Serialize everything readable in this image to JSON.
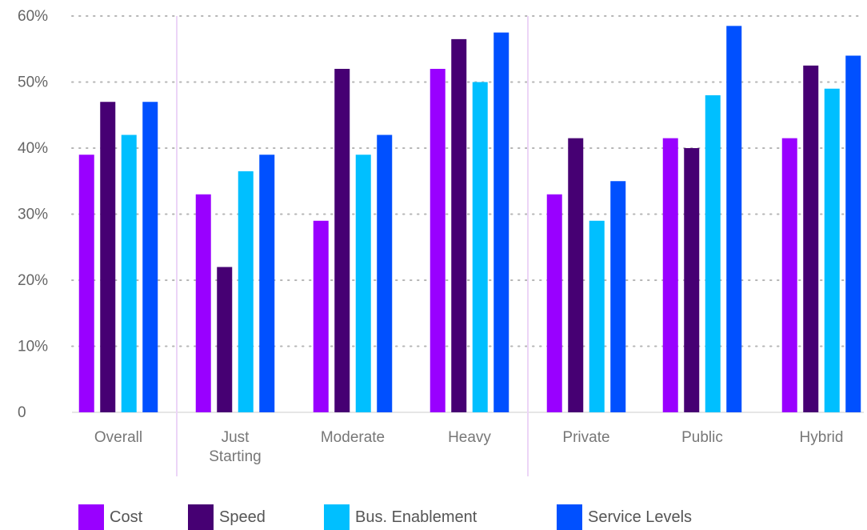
{
  "chart_data": {
    "type": "bar",
    "categories": [
      [
        "Overall"
      ],
      [
        "Just",
        "Starting"
      ],
      [
        "Moderate"
      ],
      [
        "Heavy"
      ],
      [
        "Private"
      ],
      [
        "Public"
      ],
      [
        "Hybrid"
      ]
    ],
    "series": [
      {
        "name": "Cost",
        "color": "#9900ff",
        "values": [
          39,
          33,
          29,
          52,
          33,
          41.5,
          41.5
        ]
      },
      {
        "name": "Speed",
        "color": "#460073",
        "values": [
          47,
          22,
          52,
          56.5,
          41.5,
          40,
          52.5
        ]
      },
      {
        "name": "Bus. Enablement",
        "color": "#00bfff",
        "values": [
          42,
          36.5,
          39,
          50,
          29,
          48,
          49
        ]
      },
      {
        "name": "Service Levels",
        "color": "#0050ff",
        "values": [
          47,
          39,
          42,
          57.5,
          35,
          58.5,
          54
        ]
      }
    ],
    "ylim": [
      0,
      60
    ],
    "yticks": [
      0,
      10,
      20,
      30,
      40,
      50,
      60
    ],
    "ytick_labels": [
      "0",
      "10%",
      "20%",
      "30%",
      "40%",
      "50%",
      "60%"
    ],
    "grid": true,
    "group_separators_after": [
      "Overall",
      "Heavy"
    ],
    "legend_position": "bottom",
    "title": "",
    "xlabel": "",
    "ylabel": ""
  }
}
